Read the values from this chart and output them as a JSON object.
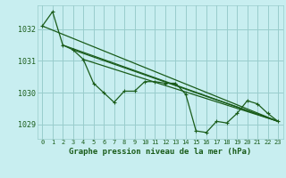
{
  "title": "Graphe pression niveau de la mer (hPa)",
  "background_color": "#c8eef0",
  "grid_color": "#99cccc",
  "line_color": "#1a5c1a",
  "xlim": [
    -0.5,
    23.5
  ],
  "ylim": [
    1028.55,
    1032.75
  ],
  "yticks": [
    1029,
    1030,
    1031,
    1032
  ],
  "xticks": [
    0,
    1,
    2,
    3,
    4,
    5,
    6,
    7,
    8,
    9,
    10,
    11,
    12,
    13,
    14,
    15,
    16,
    17,
    18,
    19,
    20,
    21,
    22,
    23
  ],
  "series": [
    {
      "x": [
        0,
        1,
        2,
        3,
        4,
        5,
        6,
        7,
        8,
        9,
        10,
        11,
        12,
        13,
        14,
        15,
        16,
        17,
        18,
        19,
        20,
        21,
        22,
        23
      ],
      "y": [
        1032.1,
        1032.55,
        1031.5,
        1031.35,
        1031.05,
        1030.3,
        1030.0,
        1029.7,
        1030.05,
        1030.05,
        1030.35,
        1030.35,
        1030.3,
        1030.3,
        1029.95,
        1028.8,
        1028.75,
        1029.1,
        1029.05,
        1029.35,
        1029.75,
        1029.65,
        1029.35,
        1029.1
      ],
      "marker": "+"
    },
    {
      "x": [
        0,
        23
      ],
      "y": [
        1032.1,
        1029.1
      ],
      "marker": null
    },
    {
      "x": [
        2,
        23
      ],
      "y": [
        1031.5,
        1029.1
      ],
      "marker": null
    },
    {
      "x": [
        3,
        23
      ],
      "y": [
        1031.35,
        1029.1
      ],
      "marker": null
    },
    {
      "x": [
        4,
        23
      ],
      "y": [
        1031.05,
        1029.1
      ],
      "marker": null
    }
  ]
}
